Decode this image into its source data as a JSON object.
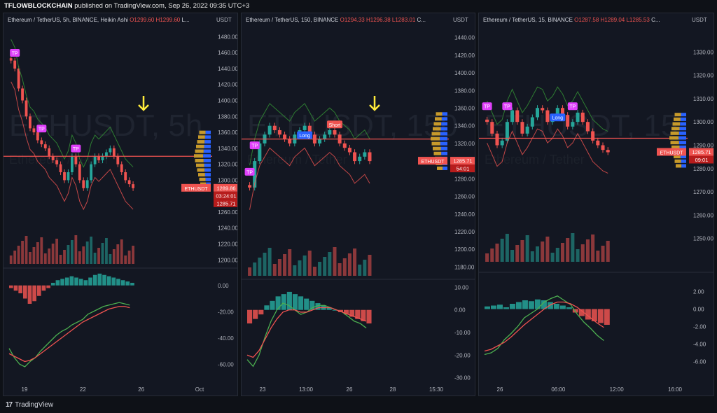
{
  "header": {
    "author": "TFLOWBLOCKCHAIN",
    "published": "published on TradingView.com, Sep 26, 2022 09:35 UTC+3"
  },
  "footer": {
    "brand": "TradingView"
  },
  "theme": {
    "up": "#26a69a",
    "down": "#ef5350",
    "band": "#2e7d32",
    "macd": "#4caf50",
    "signal": "#ef5350",
    "accent": "#ffeb3b",
    "blue": "#2962ff"
  },
  "chart_data": [
    {
      "type": "candlestick",
      "title": "Ethereum / TetherUS, 5h, BINANCE, Heikin Ashi",
      "ohlc": {
        "o": "O1299.60",
        "h": "H1299.60",
        "l": "L..."
      },
      "currency": "USDT",
      "watermark": "ETHUSDT, 5h",
      "watermark2": "Ethereum / Tether",
      "price_axis": [
        "1480.00",
        "1460.00",
        "1440.00",
        "1420.00",
        "1400.00",
        "1380.00",
        "1360.00",
        "1340.00",
        "1320.00",
        "1300.00",
        "1280.00",
        "1260.00",
        "1240.00",
        "1220.00",
        "1200.00"
      ],
      "ylim": [
        1195,
        1490
      ],
      "macd_axis": [
        "0.00",
        "-20.00",
        "-40.00",
        "-60.00"
      ],
      "macd_ylim": [
        -70,
        10
      ],
      "time_axis": [
        "19",
        "22",
        "26",
        "Oct"
      ],
      "close": [
        1450,
        1440,
        1415,
        1400,
        1380,
        1365,
        1360,
        1350,
        1345,
        1340,
        1330,
        1325,
        1320,
        1310,
        1300,
        1310,
        1330,
        1320,
        1300,
        1290,
        1300,
        1320,
        1330,
        1325,
        1330,
        1335,
        1340,
        1330,
        1320,
        1310,
        1300,
        1295,
        1290
      ],
      "markers": [
        {
          "label": "TP",
          "bar": 1
        },
        {
          "label": "TP",
          "bar": 8
        },
        {
          "label": "TP",
          "bar": 17
        }
      ],
      "current_label": "ETHUSDT",
      "price_tags": [
        "1289.86",
        "03:24:01",
        "1285.71"
      ],
      "hline": 1330,
      "macd_hist": [
        -2,
        -4,
        -6,
        -10,
        -14,
        -12,
        -8,
        -4,
        -2,
        2,
        4,
        5,
        6,
        7,
        6,
        5,
        4,
        6,
        8,
        9,
        8,
        7,
        6,
        5,
        4,
        3,
        2
      ],
      "macd_line": [
        -48,
        -55,
        -60,
        -62,
        -58,
        -55,
        -50,
        -46,
        -42,
        -38,
        -35,
        -33,
        -30,
        -28,
        -26,
        -22,
        -20,
        -18,
        -16,
        -15,
        -14,
        -13,
        -14,
        -15
      ],
      "signal_line": [
        -52,
        -54,
        -56,
        -58,
        -57,
        -55,
        -52,
        -49,
        -46,
        -43,
        -40,
        -37,
        -34,
        -31,
        -28,
        -26,
        -24,
        -22,
        -20,
        -18,
        -17,
        -16,
        -16,
        -17
      ]
    },
    {
      "type": "candlestick",
      "title": "Ethereum / TetherUS, 150, BINANCE",
      "ohlc": {
        "o": "O1294.33",
        "h": "H1296.38",
        "l": "L1283.01",
        "c": "C..."
      },
      "currency": "USDT",
      "watermark": "ETHUSDT, 150",
      "watermark2": "Ethereum / Tether",
      "price_axis": [
        "1440.00",
        "1420.00",
        "1400.00",
        "1380.00",
        "1360.00",
        "1340.00",
        "1320.00",
        "1300.00",
        "1280.00",
        "1260.00",
        "1240.00",
        "1220.00",
        "1200.00",
        "1180.00"
      ],
      "ylim": [
        1170,
        1450
      ],
      "macd_axis": [
        "10.00",
        "0.00",
        "-10.00",
        "-20.00",
        "-30.00"
      ],
      "macd_ylim": [
        -32,
        12
      ],
      "time_axis": [
        "23",
        "13:00",
        "26",
        "28",
        "15:30"
      ],
      "close": [
        1270,
        1300,
        1320,
        1330,
        1340,
        1335,
        1330,
        1325,
        1320,
        1330,
        1335,
        1340,
        1330,
        1320,
        1325,
        1330,
        1335,
        1330,
        1320,
        1315,
        1310,
        1300,
        1305,
        1310,
        1300
      ],
      "markers": [
        {
          "label": "TP",
          "bar": 1
        },
        {
          "label": "TP",
          "bar": 0
        }
      ],
      "signals": [
        {
          "label": "Long",
          "bar": 11
        },
        {
          "label": "Short",
          "bar": 17
        }
      ],
      "current_label": "ETHUSDT",
      "price_tags": [
        "1285.71",
        "54:01"
      ],
      "hline": 1325,
      "macd_hist": [
        -6,
        -4,
        -2,
        2,
        4,
        6,
        7,
        8,
        7,
        6,
        5,
        4,
        3,
        2,
        1,
        0,
        -1,
        -2,
        -3,
        -4,
        -5,
        -6
      ],
      "macd_line": [
        -22,
        -25,
        -20,
        -12,
        -5,
        0,
        3,
        2,
        0,
        -2,
        -1,
        1,
        2,
        2,
        1,
        0,
        -1,
        -3,
        -5,
        -6,
        -8
      ],
      "signal_line": [
        -20,
        -21,
        -18,
        -13,
        -8,
        -4,
        -1,
        0,
        0,
        -1,
        -1,
        0,
        1,
        1,
        1,
        0,
        -1,
        -2,
        -3,
        -4,
        -5
      ]
    },
    {
      "type": "candlestick",
      "title": "Ethereum / TetherUS, 15, BINANCE",
      "ohlc": {
        "o": "O1287.58",
        "h": "H1289.04",
        "l": "L1285.53",
        "c": "C..."
      },
      "currency": "USDT",
      "watermark": "ETHUSDT, 15",
      "watermark2": "Ethereum / Tether",
      "price_axis": [
        "1330.00",
        "1320.00",
        "1310.00",
        "1300.00",
        "1290.00",
        "1280.00",
        "1270.00",
        "1260.00",
        "1250.00"
      ],
      "ylim": [
        1240,
        1340
      ],
      "macd_axis": [
        "2.00",
        "0.00",
        "-2.00",
        "-4.00",
        "-6.00"
      ],
      "macd_ylim": [
        -7,
        3
      ],
      "time_axis": [
        "26",
        "06:00",
        "12:00",
        "16:00"
      ],
      "close": [
        1300,
        1295,
        1290,
        1292,
        1300,
        1305,
        1300,
        1295,
        1298,
        1302,
        1306,
        1305,
        1300,
        1302,
        1306,
        1303,
        1298,
        1300,
        1304,
        1300,
        1296,
        1292,
        1290,
        1288,
        1287
      ],
      "markers": [
        {
          "label": "TP",
          "bar": 0
        },
        {
          "label": "TP",
          "bar": 4
        },
        {
          "label": "TP",
          "bar": 17
        }
      ],
      "signals": [
        {
          "label": "Long",
          "bar": 14
        }
      ],
      "current_label": "ETHUSDT",
      "price_tags": [
        "1285.71",
        "09:01"
      ],
      "hline": 1293,
      "macd_hist": [
        0.3,
        0.4,
        0.5,
        0.2,
        0.6,
        0.8,
        1.0,
        0.9,
        1.1,
        1.0,
        0.8,
        0.6,
        0.4,
        0.2,
        -0.4,
        -0.8,
        -1.2,
        -1.4,
        -1.6,
        -1.8
      ],
      "macd_line": [
        -5.2,
        -5,
        -4.5,
        -3.5,
        -2.8,
        -2,
        -1,
        -0.5,
        0,
        0.8,
        1.2,
        1.5,
        1.0,
        0.5,
        -0.6,
        -1.5,
        -2.2,
        -3.0,
        -3.6
      ],
      "signal_line": [
        -4.8,
        -4.6,
        -4.2,
        -3.8,
        -3.2,
        -2.5,
        -1.8,
        -1.2,
        -0.6,
        0,
        0.5,
        0.8,
        0.8,
        0.6,
        0.2,
        -0.4,
        -1.0,
        -1.6,
        -2.1
      ]
    }
  ]
}
